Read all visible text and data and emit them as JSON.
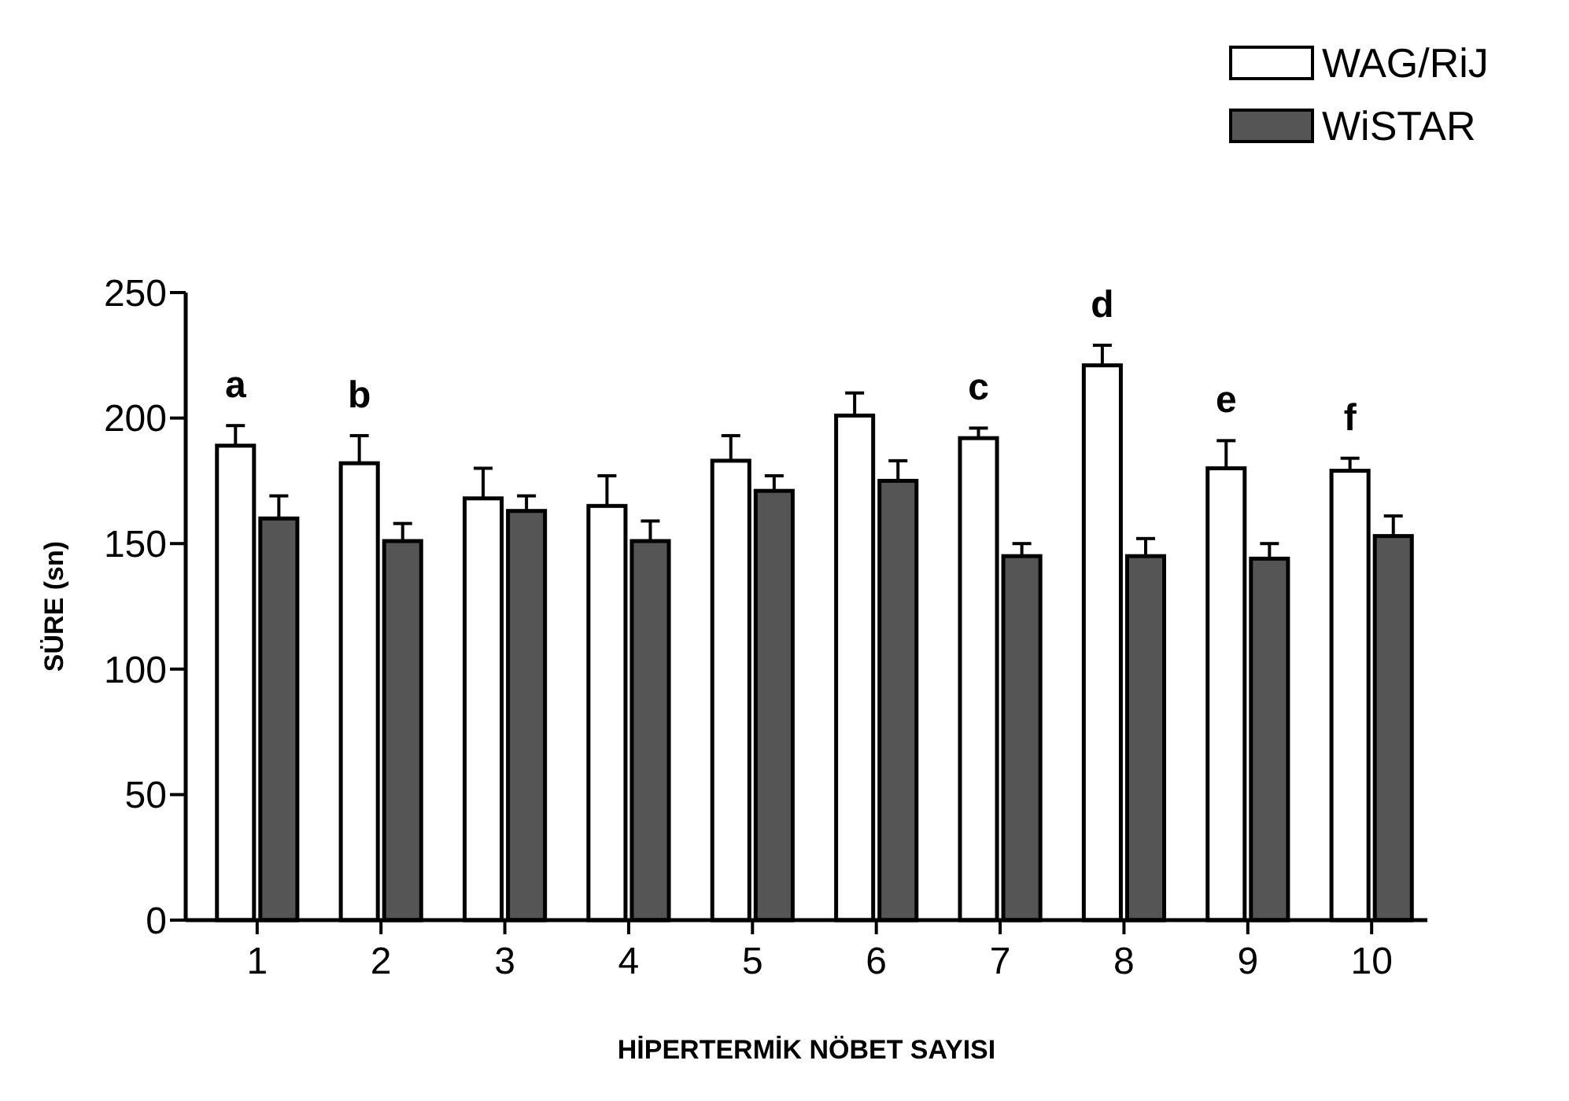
{
  "chart_data": {
    "type": "bar",
    "xlabel": "HİPERTERMİK NÖBET SAYISI",
    "ylabel": "SÜRE (sn)",
    "categories": [
      "1",
      "2",
      "3",
      "4",
      "5",
      "6",
      "7",
      "8",
      "9",
      "10"
    ],
    "series": [
      {
        "name": "WAG/RiJ",
        "color": "#ffffff",
        "values": [
          189,
          182,
          168,
          165,
          183,
          201,
          192,
          221,
          180,
          179
        ],
        "errors": [
          8,
          11,
          12,
          12,
          10,
          9,
          4,
          8,
          11,
          5
        ]
      },
      {
        "name": "WiSTAR",
        "color": "#555555",
        "values": [
          160,
          151,
          163,
          151,
          171,
          175,
          145,
          145,
          144,
          153
        ],
        "errors": [
          9,
          7,
          6,
          8,
          6,
          8,
          5,
          7,
          6,
          8
        ]
      }
    ],
    "ylim": [
      0,
      250
    ],
    "yticks": [
      0,
      50,
      100,
      150,
      200,
      250
    ],
    "grid": false,
    "legend": "top right",
    "annotations": [
      {
        "text": "a",
        "x": "1",
        "y": 189
      },
      {
        "text": "b",
        "x": "2",
        "y": 182
      },
      {
        "text": "c",
        "x": "7",
        "y": 192
      },
      {
        "text": "d",
        "x": "8",
        "y": 221
      },
      {
        "text": "e",
        "x": "9",
        "y": 180
      },
      {
        "text": "f",
        "x": "10",
        "y": 179
      }
    ]
  }
}
